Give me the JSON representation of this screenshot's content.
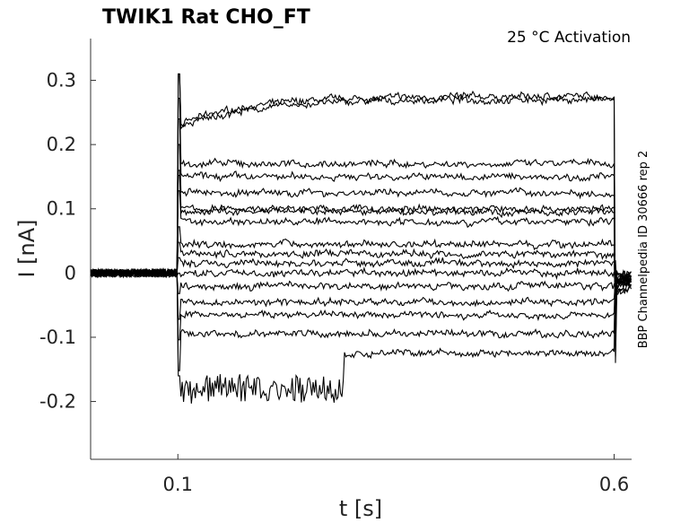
{
  "chart_data": {
    "type": "line",
    "title": "TWIK1  Rat  CHO_FT",
    "annotation": "25 °C  Activation",
    "side_label": "BBP Channelpedia ID 30666 rep 2",
    "xlabel": "t [s]",
    "ylabel": "I [nA]",
    "xlim": [
      0.0,
      0.62
    ],
    "ylim": [
      -0.29,
      0.365
    ],
    "x_ticks": [
      0.1,
      0.6
    ],
    "x_tick_labels": [
      "0.1",
      "0.6"
    ],
    "y_ticks": [
      0.3,
      0.2,
      0.1,
      0,
      -0.1,
      -0.2
    ],
    "y_tick_labels": [
      "0.3",
      "0.2",
      "0.1",
      "0",
      "-0.1",
      "-0.2"
    ],
    "grid": false,
    "step_on": 0.1,
    "step_off": 0.6,
    "series": [
      {
        "steady_nA": 0.275
      },
      {
        "steady_nA": 0.27
      },
      {
        "steady_nA": 0.17
      },
      {
        "steady_nA": 0.15
      },
      {
        "steady_nA": 0.125
      },
      {
        "steady_nA": 0.1
      },
      {
        "steady_nA": 0.095
      },
      {
        "steady_nA": 0.08
      },
      {
        "steady_nA": 0.045
      },
      {
        "steady_nA": 0.03
      },
      {
        "steady_nA": 0.015
      },
      {
        "steady_nA": 0.0
      },
      {
        "steady_nA": -0.02
      },
      {
        "steady_nA": -0.045
      },
      {
        "steady_nA": -0.065
      },
      {
        "steady_nA": -0.095
      },
      {
        "steady_nA": -0.125
      }
    ]
  }
}
